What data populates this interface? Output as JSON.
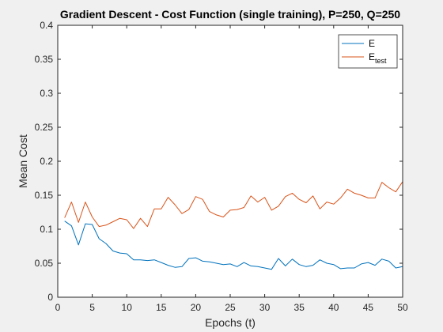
{
  "chart_data": {
    "type": "line",
    "title": "Gradient Descent - Cost Function (single training), P=250, Q=250",
    "xlabel": "Epochs (t)",
    "ylabel": "Mean Cost",
    "xlim": [
      0,
      50
    ],
    "ylim": [
      0,
      0.4
    ],
    "xticks": [
      0,
      5,
      10,
      15,
      20,
      25,
      30,
      35,
      40,
      45,
      50
    ],
    "xtick_labels": [
      "0",
      "5",
      "10",
      "15",
      "20",
      "25",
      "30",
      "35",
      "40",
      "45",
      "50"
    ],
    "yticks": [
      0,
      0.05,
      0.1,
      0.15,
      0.2,
      0.25,
      0.3,
      0.35,
      0.4
    ],
    "ytick_labels": [
      "0",
      "0.05",
      "0.1",
      "0.15",
      "0.2",
      "0.25",
      "0.3",
      "0.35",
      "0.4"
    ],
    "grid": false,
    "legend_position": "top-right",
    "x": [
      1,
      2,
      3,
      4,
      5,
      6,
      7,
      8,
      9,
      10,
      11,
      12,
      13,
      14,
      15,
      16,
      17,
      18,
      19,
      20,
      21,
      22,
      23,
      24,
      25,
      26,
      27,
      28,
      29,
      30,
      31,
      32,
      33,
      34,
      35,
      36,
      37,
      38,
      39,
      40,
      41,
      42,
      43,
      44,
      45,
      46,
      47,
      48,
      49,
      50
    ],
    "series": [
      {
        "name": "E",
        "legend_main": "E",
        "legend_sub": "",
        "color": "#0072bd",
        "values": [
          0.112,
          0.105,
          0.077,
          0.108,
          0.107,
          0.086,
          0.079,
          0.068,
          0.065,
          0.064,
          0.055,
          0.055,
          0.054,
          0.055,
          0.051,
          0.047,
          0.044,
          0.045,
          0.057,
          0.058,
          0.053,
          0.052,
          0.05,
          0.048,
          0.049,
          0.045,
          0.051,
          0.046,
          0.045,
          0.043,
          0.041,
          0.057,
          0.046,
          0.056,
          0.048,
          0.045,
          0.047,
          0.055,
          0.05,
          0.048,
          0.042,
          0.043,
          0.043,
          0.049,
          0.051,
          0.047,
          0.056,
          0.053,
          0.043,
          0.045
        ]
      },
      {
        "name": "Etest",
        "legend_main": "E",
        "legend_sub": "test",
        "color": "#d95319",
        "values": [
          0.117,
          0.14,
          0.11,
          0.14,
          0.118,
          0.104,
          0.106,
          0.111,
          0.116,
          0.114,
          0.101,
          0.116,
          0.104,
          0.13,
          0.13,
          0.147,
          0.136,
          0.123,
          0.129,
          0.148,
          0.144,
          0.126,
          0.121,
          0.118,
          0.128,
          0.129,
          0.132,
          0.149,
          0.14,
          0.147,
          0.128,
          0.134,
          0.148,
          0.153,
          0.144,
          0.139,
          0.149,
          0.13,
          0.14,
          0.137,
          0.146,
          0.159,
          0.153,
          0.15,
          0.146,
          0.146,
          0.169,
          0.161,
          0.155,
          0.17
        ]
      }
    ]
  }
}
